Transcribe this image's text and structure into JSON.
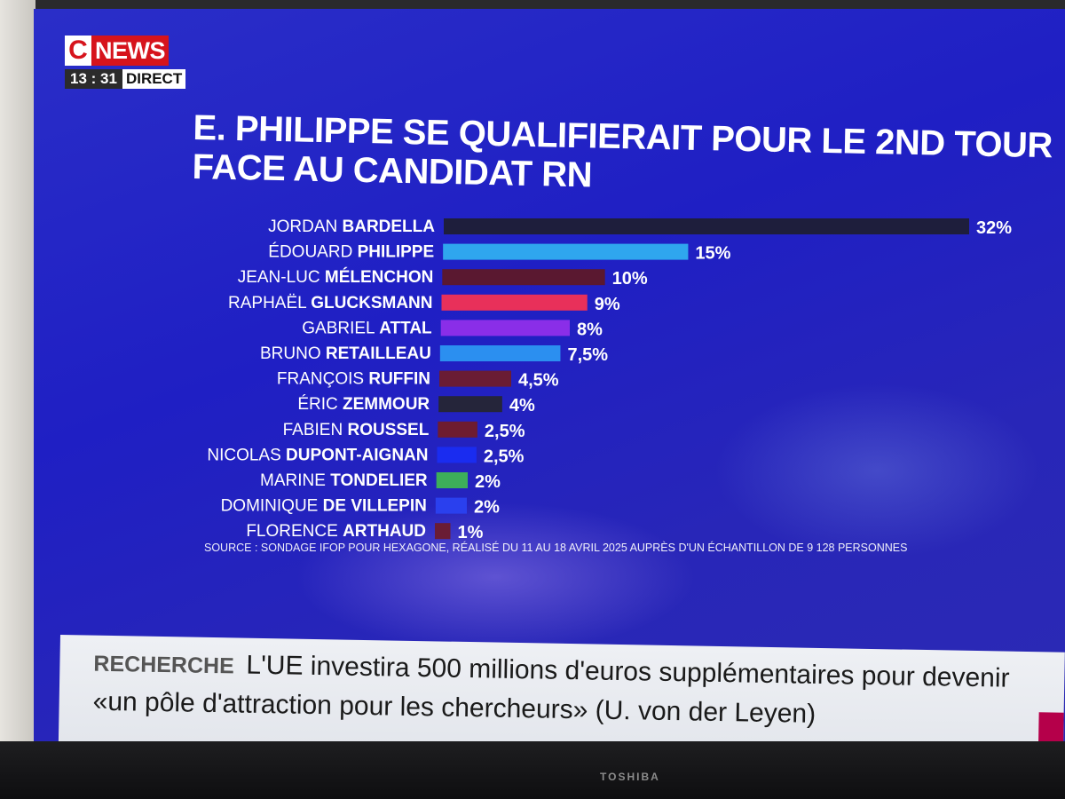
{
  "channel": {
    "logo_c": "C",
    "logo_news": "NEWS",
    "time": "13 : 31",
    "live_label": "DIRECT"
  },
  "title_lines": [
    "E. PHILIPPE SE QUALIFIERAIT POUR LE 2ND TOUR",
    "FACE AU CANDIDAT RN"
  ],
  "source": "SOURCE : SONDAGE IFOP POUR HEXAGONE, RÉALISÉ DU 11 AU 18 AVRIL 2025 AUPRÈS D'UN ÉCHANTILLON DE 9 128 PERSONNES",
  "ticker": {
    "category": "RECHERCHE",
    "line1": "L'UE investira 500 millions d'euros supplémentaires pour devenir",
    "line2": "«un pôle d'attraction pour les chercheurs» (U. von der Leyen)"
  },
  "tv_brand": "TOSHIBA",
  "chart_data": {
    "type": "bar",
    "orientation": "horizontal",
    "categories": [
      {
        "first": "JORDAN",
        "last": "BARDELLA"
      },
      {
        "first": "ÉDOUARD",
        "last": "PHILIPPE"
      },
      {
        "first": "JEAN-LUC",
        "last": "MÉLENCHON"
      },
      {
        "first": "RAPHAËL",
        "last": "GLUCKSMANN"
      },
      {
        "first": "GABRIEL",
        "last": "ATTAL"
      },
      {
        "first": "BRUNO",
        "last": "RETAILLEAU"
      },
      {
        "first": "FRANÇOIS",
        "last": "RUFFIN"
      },
      {
        "first": "ÉRIC",
        "last": "ZEMMOUR"
      },
      {
        "first": "FABIEN",
        "last": "ROUSSEL"
      },
      {
        "first": "NICOLAS",
        "last": "DUPONT-AIGNAN"
      },
      {
        "first": "MARINE",
        "last": "TONDELIER"
      },
      {
        "first": "DOMINIQUE",
        "last": "DE VILLEPIN"
      },
      {
        "first": "FLORENCE",
        "last": "ARTHAUD"
      }
    ],
    "values": [
      32,
      15,
      10,
      9,
      8,
      7.5,
      4.5,
      4,
      2.5,
      2.5,
      2,
      2,
      1
    ],
    "value_labels": [
      "32%",
      "15%",
      "10%",
      "9%",
      "8%",
      "7,5%",
      "4,5%",
      "4%",
      "2,5%",
      "2,5%",
      "2%",
      "2%",
      "1%"
    ],
    "colors": [
      "#1e1e3c",
      "#2fa6ee",
      "#5a1830",
      "#e8305a",
      "#8a2ee8",
      "#2b8ff0",
      "#6a1c34",
      "#25253a",
      "#6e1c30",
      "#1a2cf0",
      "#3dae5a",
      "#2a40ee",
      "#6a1c34"
    ],
    "unit": "%",
    "grid": false,
    "legend": "none"
  }
}
